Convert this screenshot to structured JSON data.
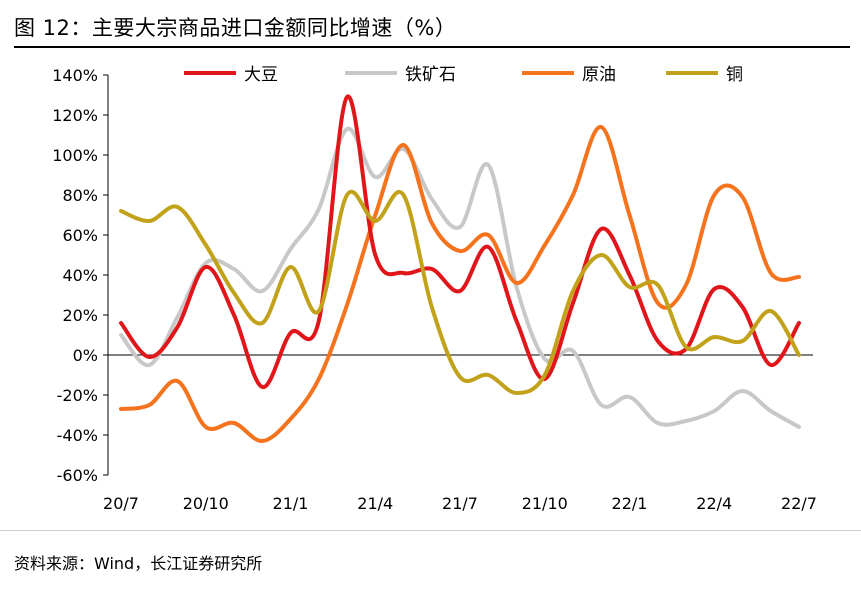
{
  "title": "图 12：主要大宗商品进口金额同比增速（%）",
  "source": "资料来源：Wind，长江证券研究所",
  "chart_data": {
    "type": "line",
    "title": "图 12：主要大宗商品进口金额同比增速（%）",
    "xlabel": "",
    "ylabel": "",
    "ylim": [
      -60,
      140
    ],
    "yticks": [
      140,
      120,
      100,
      80,
      60,
      40,
      20,
      0,
      -20,
      -40,
      -60
    ],
    "ytick_labels": [
      "140%",
      "120%",
      "100%",
      "80%",
      "60%",
      "40%",
      "20%",
      "0%",
      "-20%",
      "-40%",
      "-60%"
    ],
    "x": [
      "20/7",
      "20/8",
      "20/9",
      "20/10",
      "20/11",
      "20/12",
      "21/1",
      "21/2",
      "21/3",
      "21/4",
      "21/5",
      "21/6",
      "21/7",
      "21/8",
      "21/9",
      "21/10",
      "21/11",
      "21/12",
      "22/1",
      "22/2",
      "22/3",
      "22/4",
      "22/5",
      "22/6",
      "22/7"
    ],
    "xtick_labels": [
      "20/7",
      "20/10",
      "21/1",
      "21/4",
      "21/7",
      "21/10",
      "22/1",
      "22/4",
      "22/7"
    ],
    "legend_position": "top",
    "series": [
      {
        "name": "大豆",
        "color": "#e0161b",
        "values": [
          16,
          -1,
          14,
          44,
          20,
          -16,
          11,
          17,
          129,
          50,
          41,
          43,
          32,
          54,
          17,
          -12,
          26,
          63,
          40,
          7,
          3,
          33,
          24,
          -5,
          16
        ]
      },
      {
        "name": "铁矿石",
        "color": "#c8c8c8",
        "values": [
          10,
          -5,
          19,
          46,
          43,
          32,
          53,
          73,
          113,
          89,
          103,
          78,
          64,
          95,
          34,
          -2,
          2,
          -25,
          -21,
          -34,
          -33,
          -28,
          -18,
          -28,
          -36
        ]
      },
      {
        "name": "原油",
        "color": "#f6731e",
        "values": [
          -27,
          -25,
          -13,
          -36,
          -34,
          -43,
          -32,
          -12,
          25,
          70,
          105,
          66,
          52,
          60,
          36,
          55,
          80,
          114,
          70,
          26,
          35,
          80,
          79,
          41,
          39
        ]
      },
      {
        "name": "铜",
        "color": "#c2a21b",
        "values": [
          72,
          67,
          74,
          55,
          31,
          16,
          44,
          22,
          80,
          67,
          80,
          24,
          -11,
          -10,
          -19,
          -10,
          32,
          50,
          34,
          35,
          4,
          9,
          7,
          22,
          0
        ]
      }
    ]
  }
}
